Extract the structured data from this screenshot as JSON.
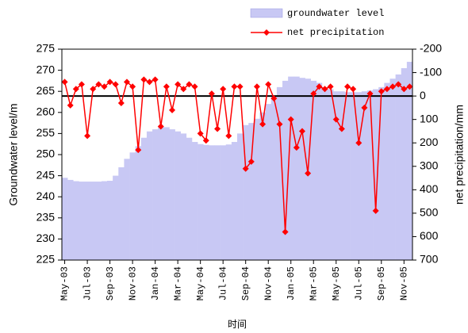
{
  "chart_data": {
    "type": "bar-line",
    "xlabel": "时间",
    "ylabel": "Groundwater level/m",
    "y2label": "net precipitation/mm",
    "categories": [
      "May-03",
      null,
      null,
      null,
      "Jul-03",
      null,
      null,
      null,
      "Sep-03",
      null,
      null,
      null,
      "Nov-03",
      null,
      null,
      null,
      "Jan-04",
      null,
      null,
      null,
      "Mar-04",
      null,
      null,
      null,
      "May-04",
      null,
      null,
      null,
      "Jul-04",
      null,
      null,
      null,
      "Sep-04",
      null,
      null,
      null,
      "Nov-04",
      null,
      null,
      null,
      "Jan-05",
      null,
      null,
      null,
      "Mar-05",
      null,
      null,
      null,
      "May-05",
      null,
      null,
      null,
      "Jul-05",
      null,
      null,
      null,
      "Sep-05",
      null,
      null,
      null,
      "Nov-05",
      null
    ],
    "series": [
      {
        "name": "groundwater level",
        "kind": "bar",
        "color": "#c8c8f4",
        "values": [
          244.5,
          244,
          243.7,
          243.6,
          243.6,
          243.6,
          243.6,
          243.7,
          243.8,
          245,
          247,
          249,
          250.5,
          252,
          254,
          255.5,
          256,
          256.5,
          256.5,
          256,
          255.5,
          255,
          254,
          253,
          252.5,
          252.3,
          252.2,
          252.2,
          252.2,
          252.4,
          253,
          255,
          257,
          257.5,
          258.5,
          260,
          262,
          264,
          266,
          267.5,
          268.5,
          268.5,
          268.2,
          268,
          267.5,
          267,
          266,
          265.5,
          265,
          265,
          264.8,
          264.8,
          264.8,
          265,
          265.2,
          265.5,
          266,
          267,
          268,
          269,
          270.5,
          272
        ]
      },
      {
        "name": "net precipitation",
        "kind": "line",
        "axis": "y2",
        "color": "#ff0000",
        "values": [
          -60,
          40,
          -30,
          -50,
          170,
          -30,
          -50,
          -40,
          -60,
          -50,
          30,
          -60,
          -40,
          230,
          -70,
          -60,
          -70,
          130,
          -40,
          60,
          -50,
          -30,
          -50,
          -40,
          160,
          190,
          -10,
          140,
          -30,
          170,
          -40,
          -40,
          310,
          280,
          -40,
          120,
          -50,
          10,
          120,
          580,
          100,
          220,
          150,
          330,
          -10,
          -40,
          -30,
          -40,
          100,
          140,
          -40,
          -30,
          200,
          50,
          -10,
          490,
          -20,
          -30,
          -40,
          -50,
          -30,
          -40
        ]
      }
    ],
    "ylim": [
      225,
      275
    ],
    "yticks": [
      225,
      230,
      235,
      240,
      245,
      250,
      255,
      260,
      265,
      270,
      275
    ],
    "y2lim": [
      700,
      -200
    ],
    "y2ticks": [
      -200,
      -100,
      0,
      100,
      200,
      300,
      400,
      500,
      600,
      700
    ],
    "y2_zero_line": true,
    "legend": "top-right"
  }
}
